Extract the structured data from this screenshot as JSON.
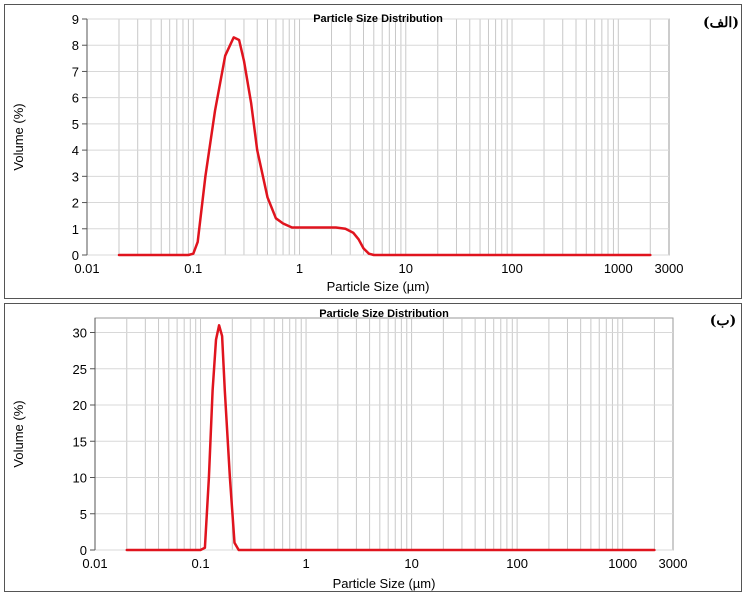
{
  "chart_data": [
    {
      "type": "line",
      "panel_tag": "(الف)",
      "title": "Particle Size Distribution",
      "xlabel": "Particle Size (µm)",
      "ylabel": "Volume (%)",
      "x_scale": "log",
      "xlim": [
        0.01,
        3000
      ],
      "ylim": [
        0,
        9
      ],
      "x_tick_labels": [
        "0.01",
        "0.1",
        "1",
        "10",
        "100",
        "1000",
        "3000"
      ],
      "x_tick_values": [
        0.01,
        0.1,
        1,
        10,
        100,
        1000,
        3000
      ],
      "y_tick_labels": [
        "0",
        "1",
        "2",
        "3",
        "4",
        "5",
        "6",
        "7",
        "8",
        "9"
      ],
      "y_tick_values": [
        0,
        1,
        2,
        3,
        4,
        5,
        6,
        7,
        8,
        9
      ],
      "grid": true,
      "series_color": "#e0141e",
      "x": [
        0.02,
        0.05,
        0.09,
        0.1,
        0.11,
        0.13,
        0.16,
        0.2,
        0.24,
        0.27,
        0.3,
        0.35,
        0.4,
        0.5,
        0.6,
        0.7,
        0.85,
        1.0,
        1.3,
        1.7,
        2.2,
        2.7,
        3.2,
        3.6,
        4.0,
        4.5,
        5.0,
        7.0,
        10,
        100,
        1000,
        2000
      ],
      "y": [
        0,
        0,
        0,
        0.05,
        0.5,
        3.0,
        5.5,
        7.6,
        8.3,
        8.2,
        7.4,
        5.8,
        4.0,
        2.2,
        1.4,
        1.2,
        1.05,
        1.05,
        1.05,
        1.05,
        1.05,
        1.0,
        0.85,
        0.6,
        0.25,
        0.05,
        0,
        0,
        0,
        0,
        0,
        0
      ]
    },
    {
      "type": "line",
      "panel_tag": "(ب)",
      "title": "Particle Size Distribution",
      "xlabel": "Particle Size (µm)",
      "ylabel": "Volume (%)",
      "x_scale": "log",
      "xlim": [
        0.01,
        3000
      ],
      "ylim": [
        0,
        32
      ],
      "x_tick_labels": [
        "0.01",
        "0.1",
        "1",
        "10",
        "100",
        "1000",
        "3000"
      ],
      "x_tick_values": [
        0.01,
        0.1,
        1,
        10,
        100,
        1000,
        3000
      ],
      "y_tick_labels": [
        "0",
        "5",
        "10",
        "15",
        "20",
        "25",
        "30"
      ],
      "y_tick_values": [
        0,
        5,
        10,
        15,
        20,
        25,
        30
      ],
      "grid": true,
      "series_color": "#e0141e",
      "x": [
        0.02,
        0.05,
        0.1,
        0.11,
        0.12,
        0.13,
        0.14,
        0.15,
        0.16,
        0.17,
        0.19,
        0.21,
        0.23,
        0.3,
        1,
        10,
        100,
        1000,
        2000
      ],
      "y": [
        0,
        0,
        0,
        0.3,
        10,
        22,
        29,
        31,
        29.5,
        22,
        10,
        1,
        0,
        0,
        0,
        0,
        0,
        0,
        0
      ]
    }
  ]
}
